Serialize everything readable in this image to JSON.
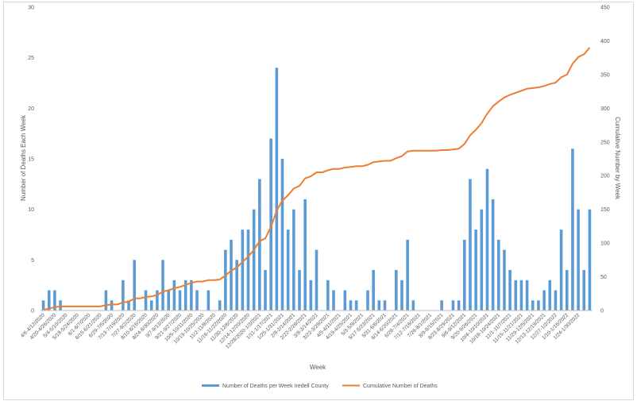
{
  "chart_data": {
    "type": "bar",
    "xlabel": "Week",
    "ylabel": "Number of Deaths Each Week",
    "y2label": "Cumulative Number by Week",
    "ylim": [
      0,
      30
    ],
    "y2lim": [
      0,
      450
    ],
    "yticks": [
      0,
      5,
      10,
      15,
      20,
      25,
      30
    ],
    "y2ticks": [
      0,
      50,
      100,
      150,
      200,
      250,
      300,
      350,
      400,
      450
    ],
    "grid": false,
    "legend": "bottom",
    "tick_labels": [
      "4/6-4/12/2020",
      "4/20-4/26/2020",
      "5/4-5/10/2020",
      "5/18-5/24/2020",
      "6/1-6/7/2020",
      "6/15-6/21/2020",
      "6/29-7/5/2020",
      "7/13-7/19/2020",
      "7/27-8/2/2020",
      "8/10-8/16/2020",
      "8/24-8/30/2020",
      "9/7-9/13/2020",
      "9/21-9/27/2020",
      "10/5-10/11/2020",
      "10/19-10/25/2020",
      "11/2-11/8/2020",
      "11/16-11/22/2020",
      "11/30-12/6/2020",
      "12/14-12/20/2020",
      "12/28/2020-1/3/2021",
      "1/11-1/17/2021",
      "1/25-1/31/2021",
      "2/8-2/14/2021",
      "2/22-2/28/2021",
      "3/8-3/14/2021",
      "3/22-3/28/2021",
      "4/5-4/11/2021",
      "4/19-4/25/2021",
      "5/3-5/9/2021",
      "5/17-5/23/2021",
      "5/31-6/6/2021",
      "6/14-6/20/2021",
      "6/28-7/4/2021",
      "7/12-7/18/2021",
      "7/26-8/1/2021",
      "8/9-8/15/2021",
      "8/23-8/29/2021",
      "9/6-9/12/2021",
      "9/20-9/26/2021",
      "10/4-10/10/2021",
      "10/18-10/24/2021",
      "11/1-11/7/2021",
      "11/15-11/21/2021",
      "11/29-12/5/2021",
      "12/13-12/19/2021",
      "12/27-1/2/2022",
      "1/10-1/16/2022",
      "1/24-1/30/2022"
    ],
    "series": [
      {
        "name": "Number of Deaths per Week Iredell County",
        "type": "bar",
        "axis": "left",
        "color": "#5b9bd5",
        "values": [
          1,
          2,
          2,
          1,
          0,
          0,
          0,
          0,
          0,
          0,
          0,
          2,
          1,
          0,
          3,
          1,
          5,
          0,
          2,
          1,
          2,
          5,
          2,
          3,
          2,
          3,
          3,
          2,
          0,
          2,
          0,
          1,
          6,
          7,
          5,
          8,
          8,
          10,
          13,
          4,
          17,
          24,
          15,
          8,
          10,
          4,
          11,
          3,
          6,
          0,
          3,
          2,
          0,
          2,
          1,
          1,
          0,
          2,
          4,
          1,
          1,
          0,
          4,
          3,
          7,
          1,
          0,
          0,
          0,
          0,
          1,
          0,
          1,
          1,
          7,
          13,
          8,
          10,
          14,
          11,
          7,
          6,
          4,
          3,
          3,
          3,
          1,
          1,
          2,
          3,
          2,
          8,
          4,
          16,
          10,
          4,
          10
        ]
      },
      {
        "name": "Cumulative Number of Deaths",
        "type": "line",
        "axis": "right",
        "color": "#ed7d31",
        "values": [
          1,
          3,
          5,
          6,
          6,
          6,
          6,
          6,
          6,
          6,
          6,
          8,
          9,
          9,
          12,
          13,
          18,
          18,
          20,
          21,
          23,
          28,
          30,
          33,
          35,
          38,
          41,
          43,
          43,
          45,
          45,
          46,
          52,
          59,
          64,
          72,
          80,
          90,
          103,
          107,
          124,
          148,
          163,
          171,
          181,
          185,
          196,
          199,
          205,
          205,
          208,
          210,
          210,
          212,
          213,
          214,
          214,
          216,
          220,
          221,
          222,
          222,
          226,
          229,
          236,
          237,
          237,
          237,
          237,
          237,
          238,
          238,
          239,
          240,
          247,
          260,
          268,
          278,
          292,
          303,
          310,
          316,
          320,
          323,
          326,
          329,
          330,
          331,
          333,
          336,
          338,
          346,
          350,
          366,
          376,
          380,
          390
        ]
      }
    ]
  }
}
